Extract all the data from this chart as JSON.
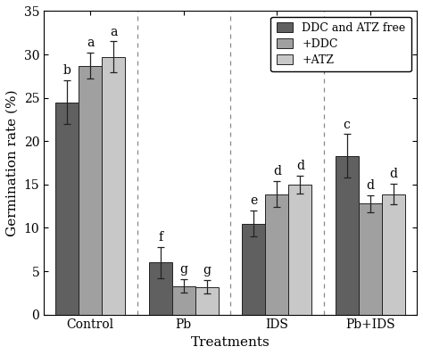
{
  "categories": [
    "Control",
    "Pb",
    "IDS",
    "Pb+IDS"
  ],
  "series": {
    "DDC and ATZ free": {
      "values": [
        24.5,
        6.0,
        10.5,
        18.3
      ],
      "errors": [
        2.5,
        1.8,
        1.5,
        2.5
      ],
      "color": "#606060",
      "labels": [
        "b",
        "f",
        "e",
        "c"
      ]
    },
    "+DDC": {
      "values": [
        28.7,
        3.3,
        13.9,
        12.8
      ],
      "errors": [
        1.5,
        0.8,
        1.5,
        1.0
      ],
      "color": "#a0a0a0",
      "labels": [
        "a",
        "g",
        "d",
        "d"
      ]
    },
    "+ATZ": {
      "values": [
        29.7,
        3.2,
        15.0,
        13.9
      ],
      "errors": [
        1.8,
        0.8,
        1.0,
        1.2
      ],
      "color": "#c8c8c8",
      "labels": [
        "a",
        "g",
        "d",
        "d"
      ]
    }
  },
  "xlabel": "Treatments",
  "ylabel": "Germination rate (%)",
  "ylim": [
    0,
    35
  ],
  "yticks": [
    0,
    5,
    10,
    15,
    20,
    25,
    30,
    35
  ],
  "bar_width": 0.25,
  "legend_order": [
    "DDC and ATZ free",
    "+DDC",
    "+ATZ"
  ],
  "background_color": "#ffffff",
  "label_fontsize": 11,
  "tick_fontsize": 10,
  "letter_fontsize": 10,
  "figsize": [
    4.74,
    3.98
  ],
  "dpi": 100
}
